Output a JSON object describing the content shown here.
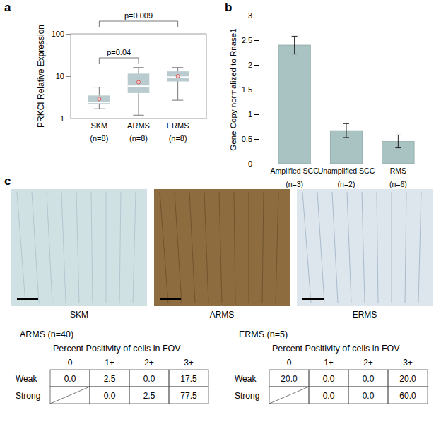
{
  "chart_data": [
    {
      "type": "box",
      "panel_label": "a",
      "ylabel": "PRKCI Relative Expression",
      "categories": [
        "SKM",
        "ARMS",
        "ERMS"
      ],
      "n_labels": [
        "(n=8)",
        "(n=8)",
        "(n=8)"
      ],
      "low": [
        1.7,
        1.2,
        2.7
      ],
      "q1": [
        2.2,
        4.0,
        7.5
      ],
      "median": [
        2.4,
        5.8,
        9.5
      ],
      "q3": [
        3.5,
        11.5,
        13
      ],
      "high": [
        5.5,
        16,
        16
      ],
      "mean": [
        2.9,
        7.2,
        10
      ],
      "color": "#b9cbce",
      "log": "y",
      "ylim": [
        1,
        100
      ],
      "yticks": [
        1,
        10,
        100
      ],
      "annotations": [
        {
          "text": "p=0.04",
          "from": "SKM",
          "to": "ARMS"
        },
        {
          "text": "p=0.009",
          "from": "SKM",
          "to": "ERMS"
        }
      ]
    },
    {
      "type": "bar",
      "panel_label": "b",
      "ylabel": "Gene Copy normalized to Rnase1",
      "categories": [
        "Amplified SCC",
        "Unamplified SCC",
        "RMS"
      ],
      "n_labels": [
        "(n=3)",
        "(n=2)",
        "(n=6)"
      ],
      "values": [
        2.4,
        0.67,
        0.45
      ],
      "errors": [
        0.18,
        0.14,
        0.13
      ],
      "color": "#a9c2c2",
      "ylim": [
        0,
        3
      ],
      "yticks": [
        0,
        0.5,
        1,
        1.5,
        2,
        2.5,
        3
      ]
    }
  ],
  "panel_c": {
    "panel_label": "c",
    "images": [
      "SKM",
      "ARMS",
      "ERMS"
    ],
    "tables": [
      {
        "title": "ARMS (n=40)",
        "header": "Percent Positivity of cells in FOV",
        "columns": [
          "0",
          "1+",
          "2+",
          "3+"
        ],
        "rows": [
          {
            "label": "Weak",
            "cells": [
              "0.0",
              "2.5",
              "0.0",
              "17.5"
            ]
          },
          {
            "label": "Strong",
            "cells": [
              null,
              "0.0",
              "2.5",
              "77.5"
            ]
          }
        ]
      },
      {
        "title": "ERMS (n=5)",
        "header": "Percent Positivity of cells in FOV",
        "columns": [
          "0",
          "1+",
          "2+",
          "3+"
        ],
        "rows": [
          {
            "label": "Weak",
            "cells": [
              "20.0",
              "0.0",
              "0.0",
              "20.0"
            ]
          },
          {
            "label": "Strong",
            "cells": [
              null,
              "0.0",
              "0.0",
              "60.0"
            ]
          }
        ]
      }
    ]
  }
}
